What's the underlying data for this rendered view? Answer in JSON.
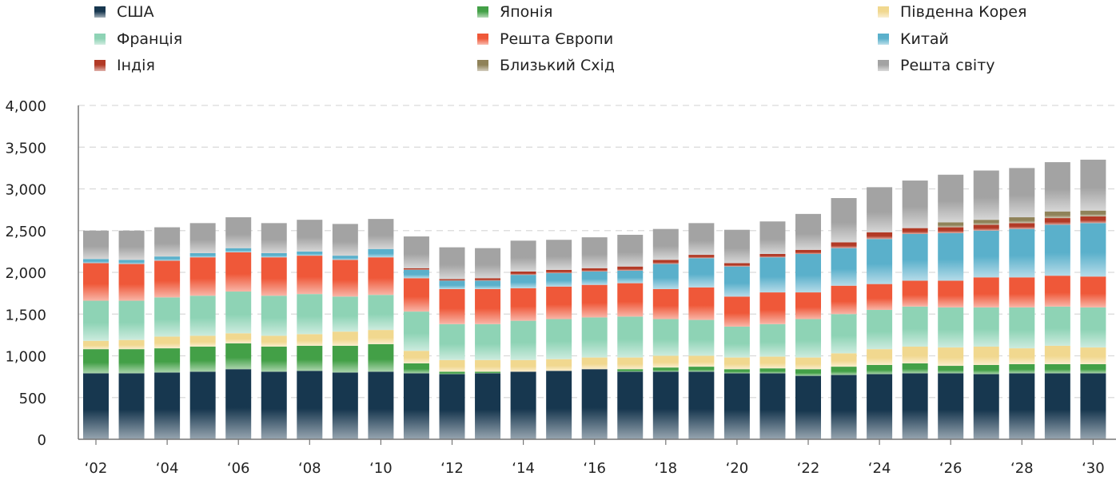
{
  "chart_data": {
    "type": "bar",
    "stacked": true,
    "x": [
      "2002",
      "2003",
      "2004",
      "2005",
      "2006",
      "2007",
      "2008",
      "2009",
      "2010",
      "2011",
      "2012",
      "2013",
      "2014",
      "2015",
      "2016",
      "2017",
      "2018",
      "2019",
      "2020",
      "2021",
      "2022",
      "2023",
      "2024",
      "2025",
      "2026",
      "2027",
      "2028",
      "2029",
      "2030"
    ],
    "x_tick_labels": [
      "‘02",
      "‘04",
      "‘06",
      "‘08",
      "‘10",
      "‘12",
      "‘14",
      "‘16",
      "‘18",
      "‘20",
      "‘22",
      "‘24",
      "‘26",
      "‘28",
      "‘30"
    ],
    "ylim": [
      0,
      4000
    ],
    "y_ticks": [
      "0",
      "500",
      "1,000",
      "1,500",
      "2,000",
      "2,500",
      "3,000",
      "3,500",
      "4,000"
    ],
    "grid": true,
    "legend_position": "top",
    "series": [
      {
        "name": "США",
        "color": "#17374f",
        "values": [
          790,
          790,
          800,
          810,
          840,
          810,
          820,
          800,
          810,
          790,
          780,
          790,
          810,
          820,
          840,
          810,
          810,
          810,
          790,
          790,
          760,
          770,
          780,
          790,
          790,
          780,
          790,
          790,
          790
        ]
      },
      {
        "name": "Японія",
        "color": "#43a047",
        "values": [
          290,
          290,
          290,
          300,
          310,
          300,
          300,
          320,
          330,
          120,
          30,
          20,
          0,
          0,
          0,
          30,
          50,
          60,
          50,
          60,
          80,
          100,
          110,
          120,
          90,
          110,
          110,
          110,
          110
        ]
      },
      {
        "name": "Південна Корея",
        "color": "#f1d88f",
        "values": [
          100,
          110,
          140,
          130,
          120,
          130,
          140,
          170,
          170,
          150,
          140,
          140,
          140,
          140,
          140,
          140,
          140,
          130,
          140,
          140,
          140,
          160,
          190,
          200,
          220,
          220,
          190,
          220,
          200
        ]
      },
      {
        "name": "Франція",
        "color": "#8ed3b5",
        "values": [
          480,
          470,
          470,
          480,
          500,
          480,
          480,
          420,
          420,
          470,
          430,
          430,
          470,
          480,
          480,
          490,
          440,
          430,
          370,
          390,
          460,
          470,
          470,
          480,
          480,
          470,
          490,
          470,
          480
        ]
      },
      {
        "name": "Решта Європи",
        "color": "#ef5839",
        "values": [
          450,
          440,
          440,
          460,
          470,
          460,
          460,
          440,
          450,
          400,
          420,
          420,
          390,
          390,
          390,
          400,
          360,
          390,
          360,
          380,
          320,
          340,
          310,
          310,
          320,
          360,
          360,
          370,
          370
        ]
      },
      {
        "name": "Китай",
        "color": "#5ab0cb",
        "values": [
          50,
          50,
          50,
          50,
          50,
          50,
          50,
          50,
          100,
          100,
          100,
          100,
          160,
          160,
          160,
          150,
          300,
          350,
          360,
          420,
          460,
          450,
          540,
          560,
          570,
          560,
          580,
          610,
          640
        ]
      },
      {
        "name": "Індія",
        "color": "#b23a26",
        "values": [
          0,
          0,
          0,
          0,
          0,
          0,
          0,
          0,
          0,
          20,
          20,
          30,
          40,
          40,
          40,
          50,
          50,
          40,
          40,
          40,
          50,
          70,
          80,
          70,
          70,
          70,
          70,
          80,
          80
        ]
      },
      {
        "name": "Близький Схід",
        "color": "#8f8259",
        "values": [
          0,
          0,
          0,
          0,
          0,
          0,
          0,
          0,
          0,
          0,
          0,
          0,
          0,
          0,
          0,
          0,
          0,
          0,
          0,
          0,
          0,
          0,
          0,
          0,
          60,
          60,
          70,
          80,
          70
        ]
      },
      {
        "name": "Решта світу",
        "color": "#a3a3a3",
        "values": [
          340,
          350,
          350,
          360,
          370,
          360,
          380,
          380,
          360,
          380,
          380,
          360,
          370,
          360,
          370,
          380,
          370,
          380,
          400,
          390,
          430,
          530,
          540,
          570,
          570,
          590,
          590,
          590,
          610
        ]
      }
    ],
    "legend": [
      {
        "series": 0,
        "col": 0,
        "row": 0
      },
      {
        "series": 3,
        "col": 0,
        "row": 1
      },
      {
        "series": 6,
        "col": 0,
        "row": 2
      },
      {
        "series": 1,
        "col": 1,
        "row": 0
      },
      {
        "series": 4,
        "col": 1,
        "row": 1
      },
      {
        "series": 7,
        "col": 1,
        "row": 2
      },
      {
        "series": 2,
        "col": 2,
        "row": 0
      },
      {
        "series": 5,
        "col": 2,
        "row": 1
      },
      {
        "series": 8,
        "col": 2,
        "row": 2
      }
    ]
  }
}
